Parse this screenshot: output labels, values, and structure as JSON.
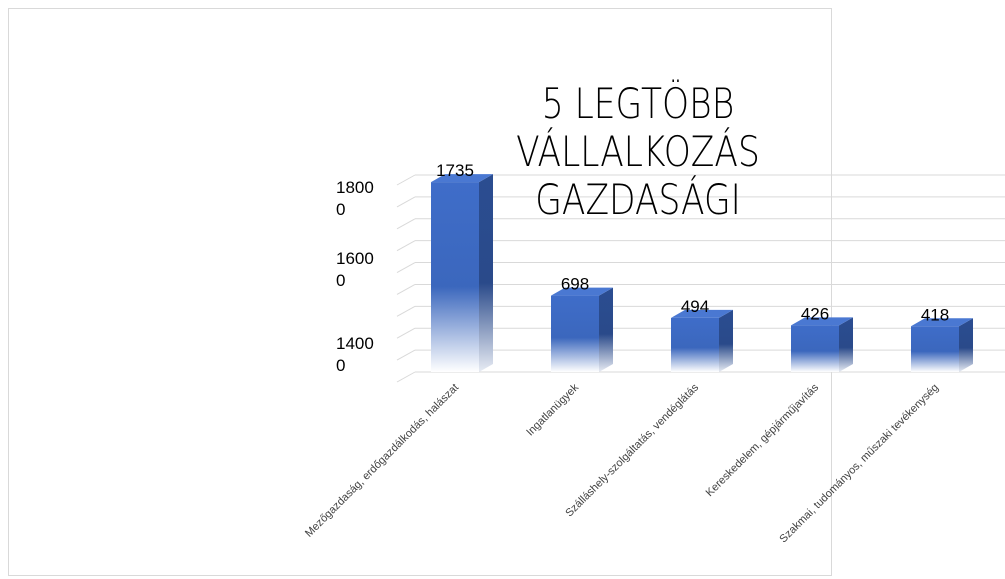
{
  "chart_data": {
    "type": "bar3d",
    "title": "5 LEGTÖBB VÁLLALKOZÁS GAZDASÁGI",
    "categories": [
      "Mezőgazdaság, erdőgazdálkodás, halászat",
      "Ingatlanügyek",
      "Szálláshely-szolgáltatás, vendéglátás",
      "Kereskedelem, gépjárműjavítás",
      "Szakmai, tudományos, műszaki tevékenység"
    ],
    "values": [
      1735,
      698,
      494,
      426,
      418
    ],
    "color": "#4472c4",
    "ylim": [
      0,
      1800
    ],
    "yticks": [
      {
        "value": 0,
        "label": null
      },
      {
        "value": 200,
        "label": null
      },
      {
        "value": 400,
        "label": null
      },
      {
        "value": 600,
        "label": null
      },
      {
        "value": 800,
        "label": null
      },
      {
        "value": 1000,
        "label": null
      },
      {
        "value": 1200,
        "label": null
      },
      {
        "value": 1400,
        "label": "1400\n0"
      },
      {
        "value": 1600,
        "label": "1600\n0"
      },
      {
        "value": 1800,
        "label": "1800\n0"
      }
    ],
    "grid": true
  }
}
